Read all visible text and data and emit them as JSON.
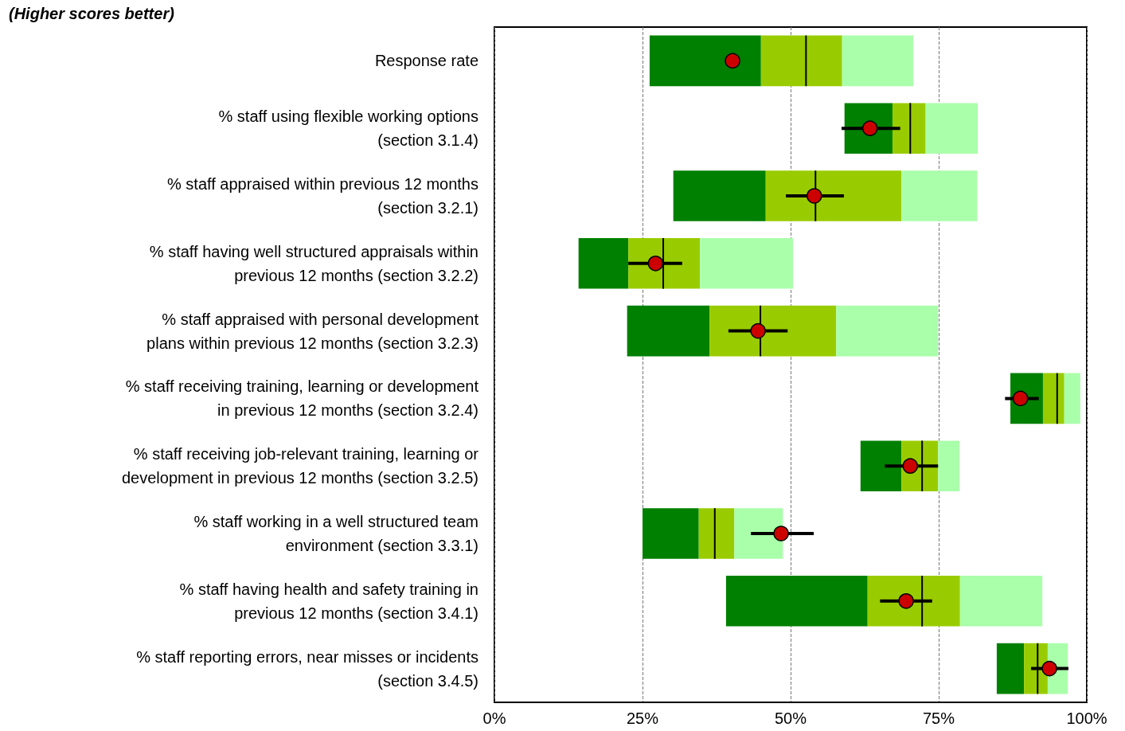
{
  "chart_data": {
    "type": "bar",
    "orientation": "horizontal",
    "title": "(Higher scores better)",
    "categories": [
      "Response rate",
      "% staff using flexible working options\n(section 3.1.4)",
      "% staff appraised within previous 12 months\n(section 3.2.1)",
      "% staff having well structured appraisals within\nprevious 12 months (section 3.2.2)",
      "% staff appraised with personal development\nplans within previous 12 months (section 3.2.3)",
      "% staff receiving training, learning or development\nin previous 12 months (section 3.2.4)",
      "% staff receiving job-relevant training, learning or\ndevelopment in previous 12 months (section 3.2.5)",
      "% staff working in a well structured team\nenvironment (section 3.3.1)",
      "% staff having health and safety training in\nprevious 12 months (section 3.4.1)",
      "% staff reporting errors, near misses or incidents\n(section 3.4.5)"
    ],
    "xlim": [
      0,
      100
    ],
    "xticks": [
      {
        "value": 0,
        "label": "0%"
      },
      {
        "value": 25,
        "label": "25%"
      },
      {
        "value": 50,
        "label": "50%"
      },
      {
        "value": 75,
        "label": "75%"
      },
      {
        "value": 100,
        "label": "100%"
      }
    ],
    "grid": "x",
    "series": [
      {
        "color": "#008000",
        "base": [
          26.2,
          59.1,
          30.2,
          14.2,
          22.4,
          87.1,
          61.8,
          25.0,
          39.1,
          84.8
        ],
        "values": [
          18.8,
          8.1,
          15.6,
          8.4,
          13.9,
          5.5,
          6.9,
          9.5,
          23.9,
          4.6
        ]
      },
      {
        "color": "#99cc00",
        "base": [
          45.0,
          67.2,
          45.8,
          22.6,
          36.3,
          92.6,
          68.7,
          34.5,
          63.0,
          89.4
        ],
        "values": [
          13.7,
          5.6,
          22.9,
          12.1,
          21.4,
          3.6,
          6.2,
          6.0,
          15.6,
          4.0
        ]
      },
      {
        "color": "#aaffaa",
        "base": [
          58.7,
          72.8,
          68.7,
          34.7,
          57.7,
          96.2,
          74.9,
          40.5,
          78.6,
          93.4
        ],
        "values": [
          12.0,
          8.8,
          12.8,
          15.7,
          17.2,
          2.7,
          3.6,
          8.2,
          13.9,
          3.4
        ]
      },
      {
        "type": "bar",
        "color": "#000000",
        "base": [
          52.6,
          70.2,
          54.2,
          28.5,
          44.9,
          95.0,
          72.2,
          37.2,
          72.2,
          91.7
        ],
        "values": [
          0,
          0,
          0,
          0,
          0,
          0,
          0,
          0,
          0,
          0
        ]
      },
      {
        "type": "scatter",
        "marker": "circle",
        "color": "#cc0000",
        "values": [
          40.2,
          63.4,
          54.0,
          27.2,
          44.5,
          88.8,
          70.2,
          48.4,
          69.5,
          93.7
        ],
        "errors": [
          null,
          [
            58.6,
            68.5
          ],
          [
            49.2,
            59.0
          ],
          [
            22.6,
            31.7
          ],
          [
            39.5,
            49.5
          ],
          [
            86.2,
            91.9
          ],
          [
            65.9,
            74.9
          ],
          [
            43.3,
            53.9
          ],
          [
            65.1,
            73.9
          ],
          [
            90.6,
            96.9
          ]
        ]
      }
    ]
  }
}
